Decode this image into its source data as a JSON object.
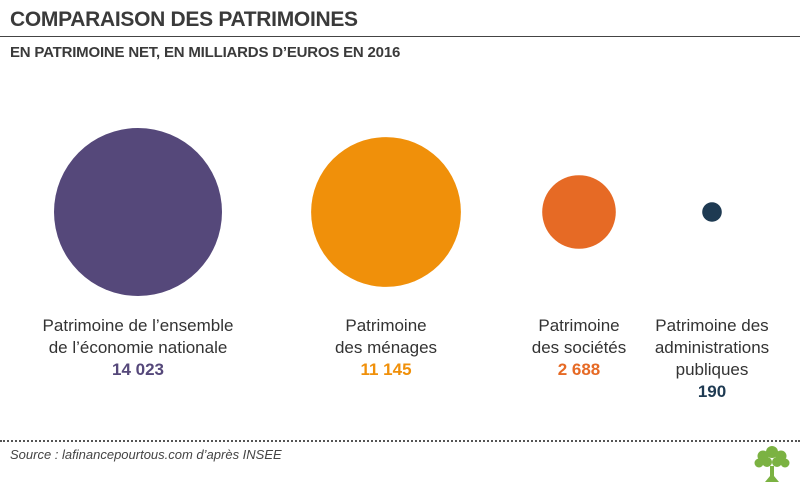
{
  "header": {
    "title": "COMPARAISON DES PATRIMOINES",
    "subtitle": "EN PATRIMOINE NET, EN MILLIARDS D’EUROS EN 2016"
  },
  "chart_data": {
    "type": "bubble",
    "unit": "milliards d’euros",
    "categories": [
      {
        "label_lines": [
          "Patrimoine de l’ensemble",
          "de l’économie nationale"
        ],
        "value": 14023,
        "value_label": "14 023",
        "color": "#55487a"
      },
      {
        "label_lines": [
          "Patrimoine",
          "des ménages"
        ],
        "value": 11145,
        "value_label": "11 145",
        "color": "#f0900a"
      },
      {
        "label_lines": [
          "Patrimoine",
          "des sociétés"
        ],
        "value": 2688,
        "value_label": "2 688",
        "color": "#e66a25"
      },
      {
        "label_lines": [
          "Patrimoine des",
          "administrations",
          "publiques"
        ],
        "value": 190,
        "value_label": "190",
        "color": "#1e3a52"
      }
    ]
  },
  "footer": {
    "source": "Source : lafinancepourtous.com d’après INSEE",
    "logo_icon": "tree-logo-icon"
  }
}
